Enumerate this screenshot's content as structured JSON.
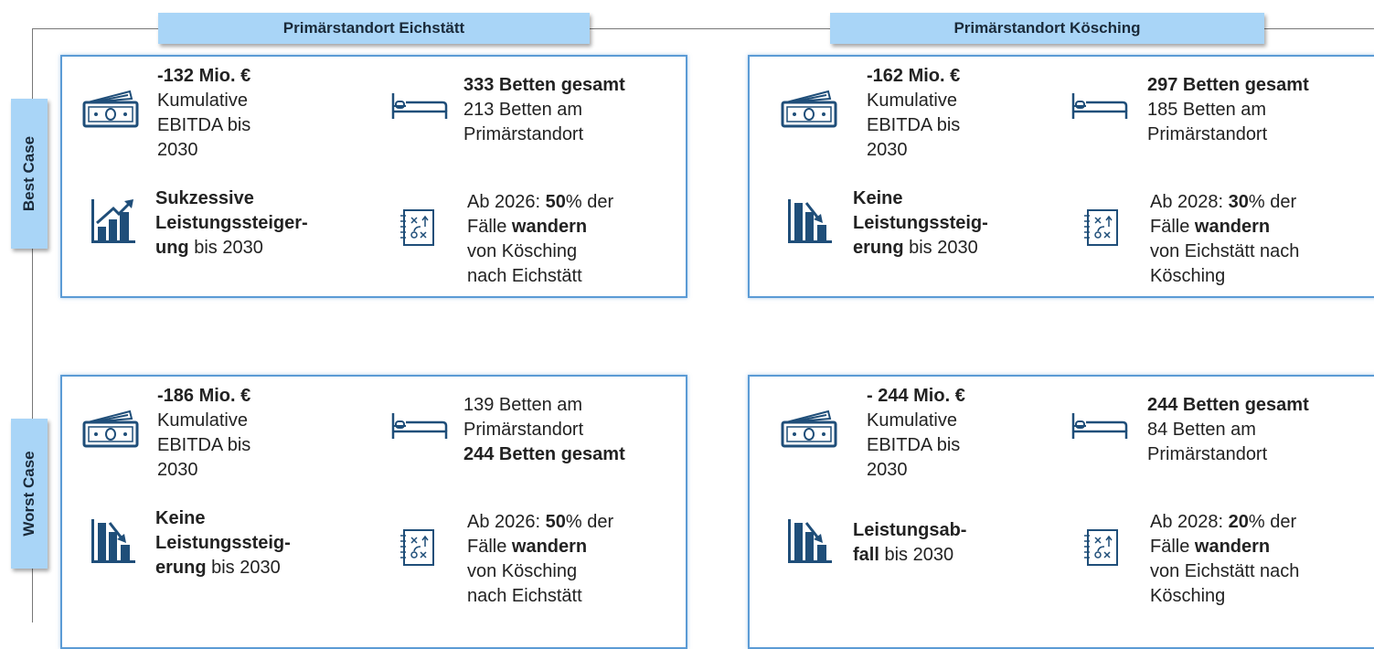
{
  "columns": [
    "Primärstandort Eichstätt",
    "Primärstandort Kösching"
  ],
  "rows": [
    "Best Case",
    "Worst Case"
  ],
  "cells": [
    [
      {
        "money": [
          [
            {
              "text": "-132 Mio. €",
              "bold": true
            }
          ],
          [
            {
              "text": "Kumulative"
            }
          ],
          [
            {
              "text": "EBITDA bis"
            }
          ],
          [
            {
              "text": "2030"
            }
          ]
        ],
        "beds": [
          [
            {
              "text": "333 Betten gesamt",
              "bold": true
            }
          ],
          [
            {
              "text": "213 Betten am"
            }
          ],
          [
            {
              "text": "Primärstandort"
            }
          ]
        ],
        "trend": "up",
        "performance": [
          [
            {
              "text": "Sukzessive",
              "bold": true
            }
          ],
          [
            {
              "text": "Leistungssteiger-",
              "bold": true
            }
          ],
          [
            {
              "text": "ung",
              "bold": true
            },
            {
              "text": " bis 2030"
            }
          ]
        ],
        "migration": [
          [
            {
              "text": "Ab 2026: "
            },
            {
              "text": "50",
              "bold": true
            },
            {
              "text": "% der"
            }
          ],
          [
            {
              "text": "Fälle "
            },
            {
              "text": "wandern",
              "bold": true
            }
          ],
          [
            {
              "text": "von Kösching"
            }
          ],
          [
            {
              "text": "nach Eichstätt"
            }
          ]
        ]
      },
      {
        "money": [
          [
            {
              "text": "-162 Mio. €",
              "bold": true
            }
          ],
          [
            {
              "text": "Kumulative"
            }
          ],
          [
            {
              "text": "EBITDA bis"
            }
          ],
          [
            {
              "text": "2030"
            }
          ]
        ],
        "beds": [
          [
            {
              "text": "297 Betten gesamt",
              "bold": true
            }
          ],
          [
            {
              "text": "185 Betten am"
            }
          ],
          [
            {
              "text": "Primärstandort"
            }
          ]
        ],
        "trend": "down",
        "performance": [
          [
            {
              "text": "Keine",
              "bold": true
            }
          ],
          [
            {
              "text": "Leistungssteig-",
              "bold": true
            }
          ],
          [
            {
              "text": "erung",
              "bold": true
            },
            {
              "text": " bis 2030"
            }
          ]
        ],
        "migration": [
          [
            {
              "text": "Ab 2028: "
            },
            {
              "text": "30",
              "bold": true
            },
            {
              "text": "% der"
            }
          ],
          [
            {
              "text": "Fälle "
            },
            {
              "text": "wandern",
              "bold": true
            }
          ],
          [
            {
              "text": "von Eichstätt nach"
            }
          ],
          [
            {
              "text": "Kösching"
            }
          ]
        ]
      }
    ],
    [
      {
        "money": [
          [
            {
              "text": "-186 Mio. €",
              "bold": true
            }
          ],
          [
            {
              "text": "Kumulative"
            }
          ],
          [
            {
              "text": "EBITDA bis"
            }
          ],
          [
            {
              "text": "2030"
            }
          ]
        ],
        "beds": [
          [
            {
              "text": "139 Betten am"
            }
          ],
          [
            {
              "text": "Primärstandort"
            }
          ],
          [
            {
              "text": "244 Betten gesamt",
              "bold": true
            }
          ]
        ],
        "trend": "down",
        "performance": [
          [
            {
              "text": "Keine",
              "bold": true
            }
          ],
          [
            {
              "text": "Leistungssteig-",
              "bold": true
            }
          ],
          [
            {
              "text": "erung",
              "bold": true
            },
            {
              "text": " bis 2030"
            }
          ]
        ],
        "migration": [
          [
            {
              "text": "Ab 2026: "
            },
            {
              "text": "50",
              "bold": true
            },
            {
              "text": "% der"
            }
          ],
          [
            {
              "text": "Fälle "
            },
            {
              "text": "wandern",
              "bold": true
            }
          ],
          [
            {
              "text": "von Kösching"
            }
          ],
          [
            {
              "text": "nach Eichstätt"
            }
          ]
        ]
      },
      {
        "money": [
          [
            {
              "text": "- 244 Mio. €",
              "bold": true
            }
          ],
          [
            {
              "text": "Kumulative"
            }
          ],
          [
            {
              "text": "EBITDA bis"
            }
          ],
          [
            {
              "text": "2030"
            }
          ]
        ],
        "beds": [
          [
            {
              "text": "244 Betten gesamt",
              "bold": true
            }
          ],
          [
            {
              "text": "84 Betten am"
            }
          ],
          [
            {
              "text": "Primärstandort"
            }
          ]
        ],
        "trend": "down",
        "performance": [
          [
            {
              "text": "Leistungsab-",
              "bold": true
            }
          ],
          [
            {
              "text": "fall",
              "bold": true
            },
            {
              "text": " bis 2030"
            }
          ]
        ],
        "migration": [
          [
            {
              "text": "Ab 2028: "
            },
            {
              "text": "20",
              "bold": true
            },
            {
              "text": "% der"
            }
          ],
          [
            {
              "text": "Fälle "
            },
            {
              "text": "wandern",
              "bold": true
            }
          ],
          [
            {
              "text": "von Eichstätt nach"
            }
          ],
          [
            {
              "text": "Kösching"
            }
          ]
        ]
      }
    ]
  ]
}
